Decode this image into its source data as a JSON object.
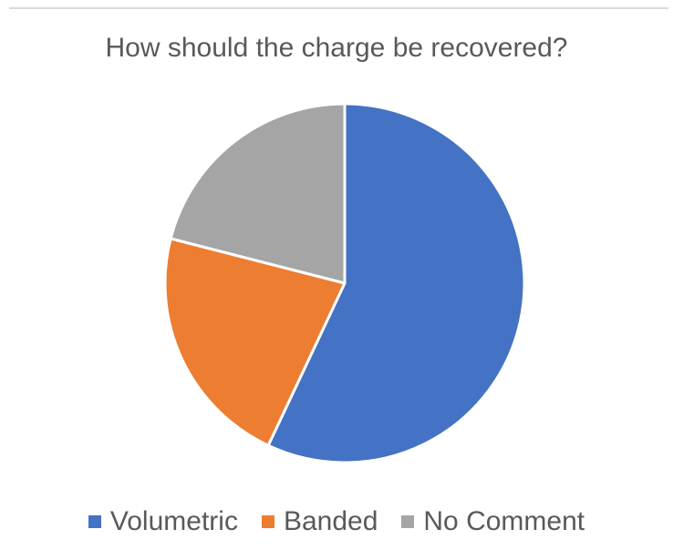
{
  "chart_data": {
    "type": "pie",
    "title": "How should the charge be recovered?",
    "categories": [
      "Volumetric",
      "Banded",
      "No Comment"
    ],
    "values": [
      57,
      22,
      21
    ],
    "colors": [
      "#4472c4",
      "#ed7d31",
      "#a5a5a5"
    ],
    "start_angle": "12 o'clock, clockwise",
    "legend_position": "bottom"
  }
}
